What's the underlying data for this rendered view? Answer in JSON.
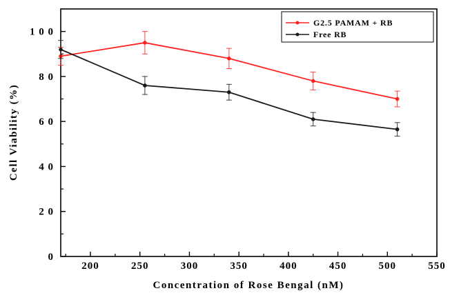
{
  "chart_data": {
    "type": "line",
    "title": "",
    "xlabel": "Concentration of Rose Bengal (nM)",
    "ylabel": "Cell Viability (%)",
    "xlim": [
      170,
      550
    ],
    "ylim": [
      0,
      110
    ],
    "xticks": [
      200,
      250,
      300,
      350,
      400,
      450,
      500,
      550
    ],
    "yticks": [
      0,
      20,
      40,
      60,
      80,
      100
    ],
    "xtick_labels": [
      "200",
      "250",
      "300",
      "350",
      "400",
      "450",
      "500",
      "550"
    ],
    "ytick_labels": [
      "0",
      "2 0",
      "4 0",
      "6 0",
      "8 0",
      "1 0 0"
    ],
    "grid": false,
    "legend_position": "top-right",
    "series": [
      {
        "name": "G2.5 PAMAM + RB",
        "color": "#ff2020",
        "x": [
          170,
          255,
          340,
          425,
          510
        ],
        "y": [
          89,
          95,
          88,
          78,
          70
        ],
        "error": [
          4,
          5,
          4.5,
          4,
          3.5
        ]
      },
      {
        "name": "Free RB",
        "color": "#1a1a1a",
        "x": [
          170,
          255,
          340,
          425,
          510
        ],
        "y": [
          92,
          76,
          73,
          61,
          56.5
        ],
        "error": [
          4,
          4,
          3.5,
          3,
          3
        ]
      }
    ]
  }
}
